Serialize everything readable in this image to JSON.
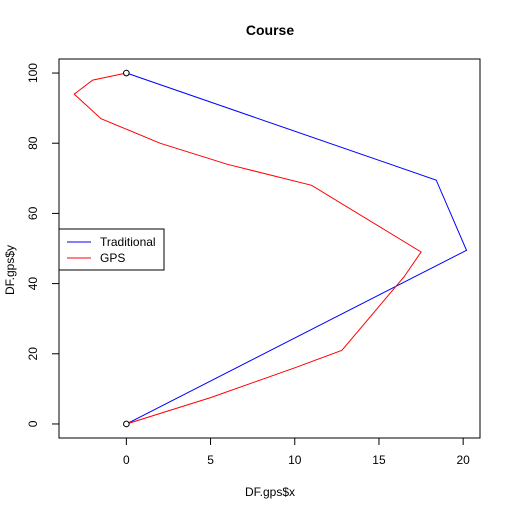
{
  "chart_data": {
    "type": "line",
    "title": "Course",
    "xlabel": "DF.gps$x",
    "ylabel": "DF.gps$y",
    "xlim": [
      -4,
      21
    ],
    "ylim": [
      -4,
      104
    ],
    "x_ticks": [
      0,
      5,
      10,
      15,
      20
    ],
    "y_ticks": [
      0,
      20,
      40,
      60,
      80,
      100
    ],
    "grid": false,
    "legend_position": "left",
    "series": [
      {
        "name": "Traditional",
        "color": "#0000ff",
        "points": [
          [
            0,
            0
          ],
          [
            20.2,
            49.5
          ],
          [
            18.4,
            69.5
          ],
          [
            0,
            100
          ]
        ]
      },
      {
        "name": "GPS",
        "color": "#ff0000",
        "points": [
          [
            0,
            0
          ],
          [
            5,
            7.5
          ],
          [
            10,
            16
          ],
          [
            12.8,
            21
          ],
          [
            15,
            33.5
          ],
          [
            16.5,
            42
          ],
          [
            17.5,
            49
          ],
          [
            11,
            68
          ],
          [
            6,
            74
          ],
          [
            2,
            80
          ],
          [
            -1.5,
            87
          ],
          [
            -3.1,
            94
          ],
          [
            -2,
            98
          ],
          [
            0,
            100
          ]
        ]
      }
    ],
    "markers": [
      {
        "x": 0,
        "y": 0,
        "shape": "open-circle"
      },
      {
        "x": 0,
        "y": 100,
        "shape": "open-circle"
      }
    ]
  }
}
